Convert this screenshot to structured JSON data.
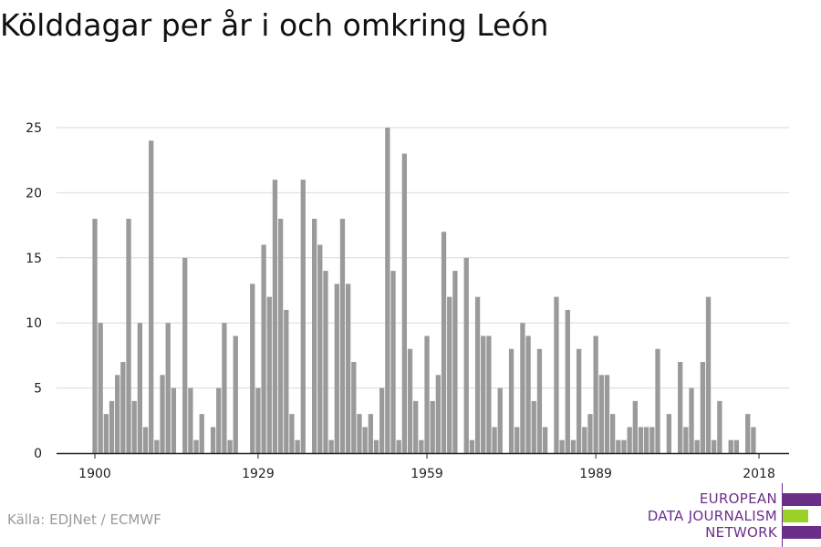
{
  "title": "Kölddagar per år i och omkring León",
  "source": "Källa: EDJNet / ECMWF",
  "logo": {
    "lines": [
      "EUROPEAN",
      "DATA JOURNALISM",
      "NETWORK"
    ],
    "colors": [
      "#6b2f8a",
      "#9bd22a",
      "#6b2f8a"
    ]
  },
  "colors": {
    "bar": "#9a9a9a",
    "grid": "#d9d9d9",
    "axis": "#222222"
  },
  "chart_data": {
    "type": "bar",
    "title": "Kölddagar per år i och omkring León",
    "xlabel": "",
    "ylabel": "",
    "x_start": 1900,
    "x_end": 2018,
    "ylim": [
      0,
      25
    ],
    "y_ticks": [
      0,
      5,
      10,
      15,
      20,
      25
    ],
    "x_ticks": [
      1900,
      1929,
      1959,
      1989,
      2018
    ],
    "grid": true,
    "values": [
      18,
      10,
      3,
      4,
      6,
      7,
      18,
      4,
      10,
      2,
      24,
      1,
      6,
      10,
      5,
      0,
      15,
      5,
      1,
      3,
      0,
      2,
      5,
      10,
      1,
      9,
      0,
      0,
      13,
      5,
      16,
      12,
      21,
      18,
      11,
      3,
      1,
      21,
      0,
      18,
      16,
      14,
      1,
      13,
      18,
      13,
      7,
      3,
      2,
      3,
      1,
      5,
      25,
      14,
      1,
      23,
      8,
      4,
      1,
      9,
      4,
      6,
      17,
      12,
      14,
      0,
      15,
      1,
      12,
      9,
      9,
      2,
      5,
      0,
      8,
      2,
      10,
      9,
      4,
      8,
      2,
      0,
      12,
      1,
      11,
      1,
      8,
      2,
      3,
      9,
      6,
      6,
      3,
      1,
      1,
      2,
      4,
      2,
      2,
      2,
      8,
      0,
      3,
      0,
      7,
      2,
      5,
      1,
      7,
      12,
      1,
      4,
      0,
      1,
      1,
      0,
      3,
      2
    ]
  }
}
